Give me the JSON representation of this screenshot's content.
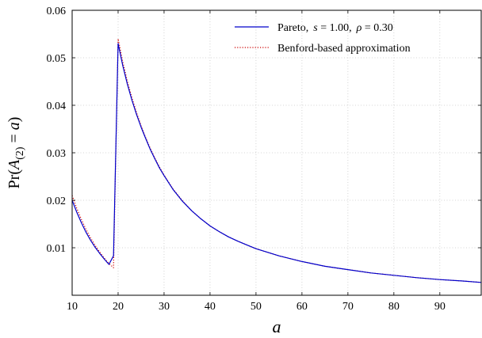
{
  "chart_data": {
    "type": "line",
    "title": "",
    "xlabel": "a",
    "ylabel": "Pr(A_(2) = a)",
    "ylabel_parts": {
      "prefix": "Pr(",
      "var": "A",
      "sub": "(2)",
      "rest": " = ",
      "var2": "a",
      "suffix": ")"
    },
    "xlim": [
      10,
      99
    ],
    "ylim": [
      0,
      0.06
    ],
    "xticks": [
      10,
      20,
      30,
      40,
      50,
      60,
      70,
      80,
      90
    ],
    "xtick_labels": [
      "10",
      "20",
      "30",
      "40",
      "50",
      "60",
      "70",
      "80",
      "90"
    ],
    "yticks": [
      0.01,
      0.02,
      0.03,
      0.04,
      0.05,
      0.06
    ],
    "ytick_labels": [
      "0.01",
      "0.02",
      "0.03",
      "0.04",
      "0.05",
      "0.06"
    ],
    "grid": true,
    "legend_position": "top-right",
    "legend_parts": {
      "pareto": {
        "name": "Pareto,",
        "s_sym": "s",
        "s_val": " = 1.00,",
        "rho_sym": "ρ",
        "rho_val": " = 0.30"
      }
    },
    "series": [
      {
        "name": "Pareto, s = 1.00, ρ = 0.30",
        "color": "#0000cc",
        "style": "solid",
        "x": [
          10,
          11,
          12,
          13,
          14,
          15,
          16,
          17,
          18,
          19,
          20,
          21,
          22,
          23,
          24,
          25,
          26,
          27,
          28,
          29,
          30,
          32,
          34,
          36,
          38,
          40,
          42,
          44,
          46,
          48,
          50,
          55,
          60,
          65,
          70,
          75,
          80,
          85,
          90,
          95,
          99
        ],
        "values": [
          0.02,
          0.0175,
          0.0153,
          0.0133,
          0.0116,
          0.0101,
          0.0088,
          0.0076,
          0.0065,
          0.0083,
          0.053,
          0.0484,
          0.0445,
          0.0411,
          0.0381,
          0.0354,
          0.033,
          0.0307,
          0.0287,
          0.0268,
          0.0252,
          0.0222,
          0.0198,
          0.0178,
          0.0161,
          0.0146,
          0.0134,
          0.0123,
          0.0114,
          0.0106,
          0.0098,
          0.0083,
          0.0071,
          0.0061,
          0.0054,
          0.0047,
          0.0042,
          0.0037,
          0.0033,
          0.003,
          0.0027
        ]
      },
      {
        "name": "Benford-based approximation",
        "color": "#cc0000",
        "style": "dotted",
        "x": [
          10,
          11,
          12,
          13,
          14,
          15,
          16,
          17,
          18,
          19,
          20,
          21,
          22,
          23,
          24,
          25,
          26,
          27,
          28,
          29,
          30,
          32,
          34,
          36,
          38,
          40,
          42,
          44,
          46,
          48,
          50,
          55,
          60,
          65,
          70,
          75,
          80,
          85,
          90,
          95,
          99
        ],
        "values": [
          0.021,
          0.0183,
          0.016,
          0.0139,
          0.0121,
          0.0105,
          0.0091,
          0.0078,
          0.0067,
          0.0058,
          0.054,
          0.0492,
          0.0451,
          0.0416,
          0.0385,
          0.0357,
          0.0332,
          0.0309,
          0.0289,
          0.027,
          0.0253,
          0.0223,
          0.0199,
          0.0178,
          0.0161,
          0.0146,
          0.0134,
          0.0123,
          0.0114,
          0.0106,
          0.0098,
          0.0083,
          0.0071,
          0.0061,
          0.0054,
          0.0047,
          0.0042,
          0.0037,
          0.0033,
          0.003,
          0.0027
        ]
      }
    ]
  }
}
